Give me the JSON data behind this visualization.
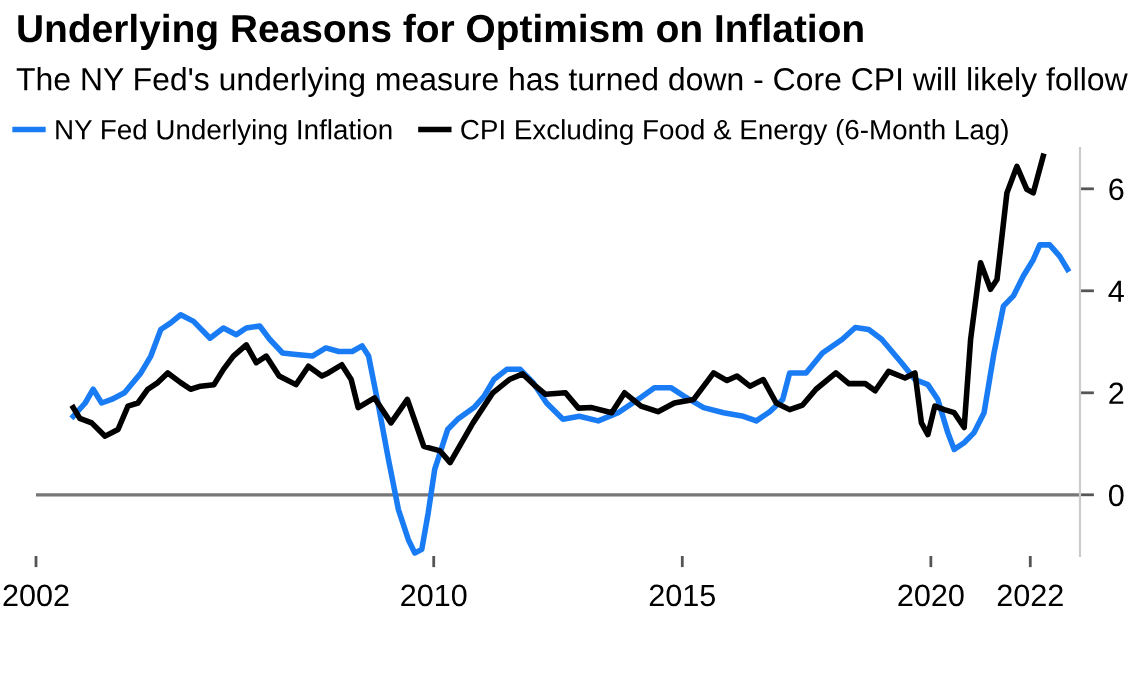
{
  "chart_data": {
    "type": "line",
    "title": "Underlying Reasons for Optimism on Inflation",
    "subtitle": "The NY Fed's underlying measure has turned down - Core CPI will likely follow",
    "series": [
      {
        "name": "NY Fed Underlying Inflation",
        "color": "#1a7cf5",
        "x": [
          2002.75,
          2002.99,
          2003.15,
          2003.32,
          2003.52,
          2003.78,
          2004.11,
          2004.31,
          2004.51,
          2004.71,
          2004.91,
          2005.17,
          2005.5,
          2005.77,
          2006.03,
          2006.23,
          2006.5,
          2006.7,
          2006.96,
          2007.23,
          2007.56,
          2007.83,
          2008.09,
          2008.36,
          2008.56,
          2008.69,
          2008.89,
          2009.09,
          2009.29,
          2009.49,
          2009.62,
          2009.76,
          2009.89,
          2010.02,
          2010.28,
          2010.48,
          2010.81,
          2011.01,
          2011.21,
          2011.47,
          2011.74,
          2012.0,
          2012.27,
          2012.6,
          2012.93,
          2013.31,
          2013.71,
          2014.11,
          2014.44,
          2014.77,
          2015.04,
          2015.43,
          2015.83,
          2016.23,
          2016.49,
          2016.76,
          2017.02,
          2017.16,
          2017.49,
          2017.82,
          2018.22,
          2018.48,
          2018.75,
          2019.01,
          2019.41,
          2019.68,
          2019.94,
          2020.14,
          2020.34,
          2020.47,
          2020.67,
          2020.87,
          2021.07,
          2021.27,
          2021.46,
          2021.66,
          2021.86,
          2022.06,
          2022.19,
          2022.39,
          2022.59,
          2022.75
        ],
        "values": [
          1.54,
          1.8,
          2.07,
          1.8,
          1.87,
          2.0,
          2.39,
          2.72,
          3.24,
          3.37,
          3.53,
          3.4,
          3.07,
          3.27,
          3.14,
          3.27,
          3.31,
          3.05,
          2.78,
          2.75,
          2.72,
          2.88,
          2.81,
          2.81,
          2.92,
          2.72,
          1.74,
          0.69,
          -0.29,
          -0.88,
          -1.14,
          -1.07,
          -0.35,
          0.5,
          1.28,
          1.48,
          1.71,
          1.93,
          2.26,
          2.46,
          2.46,
          2.2,
          1.8,
          1.48,
          1.54,
          1.45,
          1.61,
          1.87,
          2.1,
          2.1,
          1.93,
          1.71,
          1.61,
          1.54,
          1.45,
          1.63,
          1.87,
          2.39,
          2.39,
          2.78,
          3.05,
          3.28,
          3.24,
          3.05,
          2.59,
          2.26,
          2.16,
          1.87,
          1.22,
          0.89,
          1.02,
          1.22,
          1.61,
          2.78,
          3.7,
          3.9,
          4.29,
          4.61,
          4.9,
          4.9,
          4.68,
          4.42
        ]
      },
      {
        "name": "CPI Excluding Food & Energy (6-Month Lag)",
        "color": "#000000",
        "x": [
          2002.75,
          2002.88,
          2003.12,
          2003.39,
          2003.65,
          2003.85,
          2004.05,
          2004.25,
          2004.45,
          2004.65,
          2004.91,
          2005.11,
          2005.31,
          2005.58,
          2005.77,
          2005.97,
          2006.23,
          2006.43,
          2006.63,
          2006.89,
          2007.23,
          2007.48,
          2007.75,
          2007.88,
          2008.15,
          2008.34,
          2008.48,
          2008.81,
          2009.14,
          2009.47,
          2009.8,
          2010.13,
          2010.33,
          2010.79,
          2011.19,
          2011.52,
          2011.79,
          2012.05,
          2012.25,
          2012.65,
          2012.91,
          2013.18,
          2013.58,
          2013.84,
          2014.17,
          2014.51,
          2014.84,
          2015.23,
          2015.63,
          2015.9,
          2016.1,
          2016.36,
          2016.63,
          2016.89,
          2017.16,
          2017.42,
          2017.69,
          2018.09,
          2018.35,
          2018.68,
          2018.88,
          2019.15,
          2019.48,
          2019.68,
          2019.81,
          2019.94,
          2020.08,
          2020.27,
          2020.47,
          2020.67,
          2020.8,
          2021.0,
          2021.2,
          2021.33,
          2021.53,
          2021.73,
          2021.93,
          2022.06,
          2022.26
        ],
        "values": [
          1.71,
          1.5,
          1.41,
          1.15,
          1.28,
          1.74,
          1.8,
          2.07,
          2.2,
          2.39,
          2.2,
          2.07,
          2.13,
          2.16,
          2.46,
          2.72,
          2.94,
          2.59,
          2.72,
          2.33,
          2.16,
          2.52,
          2.33,
          2.39,
          2.55,
          2.26,
          1.71,
          1.9,
          1.41,
          1.87,
          0.95,
          0.86,
          0.63,
          1.41,
          2.0,
          2.26,
          2.37,
          2.13,
          1.97,
          2.0,
          1.7,
          1.71,
          1.61,
          2.0,
          1.74,
          1.63,
          1.8,
          1.87,
          2.39,
          2.24,
          2.33,
          2.13,
          2.26,
          1.8,
          1.67,
          1.76,
          2.07,
          2.39,
          2.18,
          2.18,
          2.04,
          2.42,
          2.29,
          2.39,
          1.41,
          1.18,
          1.74,
          1.67,
          1.61,
          1.32,
          3.05,
          4.55,
          4.03,
          4.22,
          5.92,
          6.44,
          5.99,
          5.92,
          6.64
        ]
      }
    ],
    "xlim": [
      2002,
      2023
    ],
    "xticks": [
      2002,
      2010,
      2015,
      2020,
      2022
    ],
    "ylim": [
      -1.2,
      6.8
    ],
    "yticks": [
      0,
      2,
      4,
      6
    ],
    "ref_lines": [
      {
        "axis": "y",
        "value": 0,
        "color": "#777777"
      }
    ],
    "legend": "top left",
    "grid": false,
    "marker": "none",
    "line_style": "solid"
  }
}
